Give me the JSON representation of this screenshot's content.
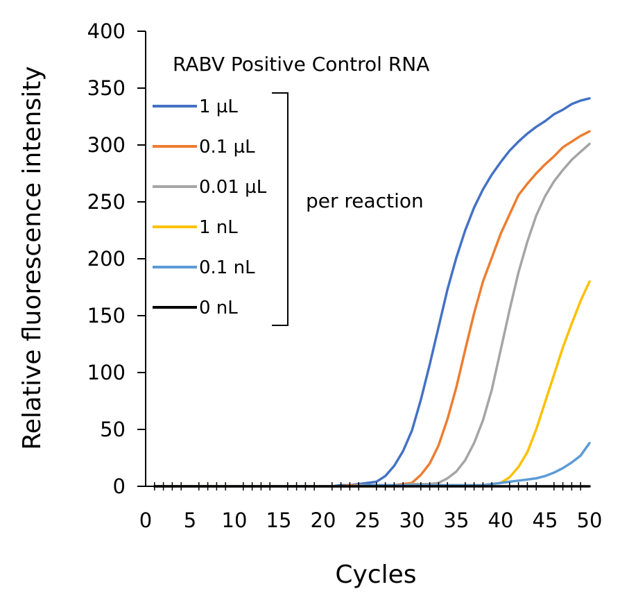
{
  "chart_data": {
    "type": "line",
    "title": "RABV Positive Control RNA",
    "xlabel": "Cycles",
    "ylabel": "Relative fluorescence intensity",
    "xlim": [
      0,
      50
    ],
    "ylim": [
      0,
      400
    ],
    "x_ticks": [
      0,
      5,
      10,
      15,
      20,
      25,
      30,
      35,
      40,
      45,
      50
    ],
    "y_ticks": [
      0,
      50,
      100,
      150,
      200,
      250,
      300,
      350,
      400
    ],
    "grid": false,
    "legend_position": "top-left",
    "legend_bracket_label": "per reaction",
    "x": [
      1,
      2,
      3,
      4,
      5,
      6,
      7,
      8,
      9,
      10,
      11,
      12,
      13,
      14,
      15,
      16,
      17,
      18,
      19,
      20,
      21,
      22,
      23,
      24,
      25,
      26,
      27,
      28,
      29,
      30,
      31,
      32,
      33,
      34,
      35,
      36,
      37,
      38,
      39,
      40,
      41,
      42,
      43,
      44,
      45,
      46,
      47,
      48,
      49,
      50
    ],
    "series": [
      {
        "name": "1 µL",
        "color": "#4472C4",
        "values": [
          0,
          0,
          0,
          0,
          0,
          0,
          0,
          0,
          0,
          0,
          0,
          0,
          0,
          0,
          0,
          0,
          0,
          0,
          0,
          0,
          0,
          1,
          1,
          2,
          3,
          4,
          9,
          18,
          31,
          49,
          76,
          107,
          140,
          173,
          201,
          225,
          245,
          261,
          274,
          285,
          295,
          303,
          310,
          316,
          321,
          327,
          331,
          336,
          339,
          341
        ]
      },
      {
        "name": "0.1 µL",
        "color": "#ED7D31",
        "values": [
          0,
          0,
          0,
          0,
          0,
          0,
          0,
          0,
          0,
          0,
          0,
          0,
          0,
          0,
          0,
          0,
          0,
          0,
          0,
          0,
          0,
          0,
          1,
          1,
          1,
          1,
          1,
          1,
          2,
          3,
          10,
          20,
          36,
          59,
          87,
          120,
          152,
          180,
          201,
          222,
          239,
          256,
          266,
          275,
          283,
          290,
          298,
          303,
          308,
          312
        ]
      },
      {
        "name": "0.01 µL",
        "color": "#A5A5A5",
        "values": [
          0,
          0,
          0,
          0,
          0,
          0,
          0,
          0,
          0,
          0,
          0,
          0,
          0,
          0,
          0,
          0,
          0,
          0,
          0,
          0,
          0,
          0,
          0,
          1,
          1,
          1,
          1,
          1,
          1,
          2,
          2,
          2,
          3,
          7,
          13,
          23,
          38,
          58,
          85,
          120,
          155,
          188,
          215,
          238,
          255,
          268,
          278,
          287,
          294,
          301
        ]
      },
      {
        "name": "1 nL",
        "color": "#FFC000",
        "values": [
          0,
          0,
          0,
          0,
          0,
          0,
          0,
          0,
          0,
          0,
          0,
          0,
          0,
          0,
          0,
          0,
          0,
          0,
          0,
          0,
          0,
          0,
          0,
          0,
          0,
          0,
          0,
          0,
          1,
          1,
          1,
          1,
          1,
          1,
          1,
          1,
          1,
          1,
          2,
          3,
          8,
          17,
          30,
          50,
          74,
          98,
          122,
          143,
          163,
          180
        ]
      },
      {
        "name": "0.1 nL",
        "color": "#5B9BD5",
        "values": [
          0,
          0,
          0,
          0,
          0,
          0,
          0,
          0,
          0,
          0,
          0,
          0,
          0,
          0,
          0,
          0,
          0,
          0,
          0,
          0,
          0,
          0,
          0,
          0,
          1,
          1,
          1,
          1,
          1,
          1,
          1,
          1,
          1,
          1,
          1,
          1,
          1,
          1,
          2,
          3,
          4,
          5,
          6,
          7,
          9,
          12,
          16,
          21,
          27,
          38
        ]
      },
      {
        "name": "0 nL",
        "color": "#000000",
        "values": [
          0,
          0,
          0,
          0,
          0,
          0,
          0,
          0,
          0,
          0,
          0,
          0,
          0,
          0,
          0,
          0,
          0,
          0,
          0,
          0,
          0,
          0,
          0,
          0,
          0,
          0,
          0,
          0,
          0,
          0,
          0,
          0,
          0,
          0,
          0,
          0,
          0,
          0,
          0,
          0,
          0,
          0,
          0,
          0,
          0,
          0,
          0,
          0,
          0,
          0
        ]
      }
    ]
  }
}
